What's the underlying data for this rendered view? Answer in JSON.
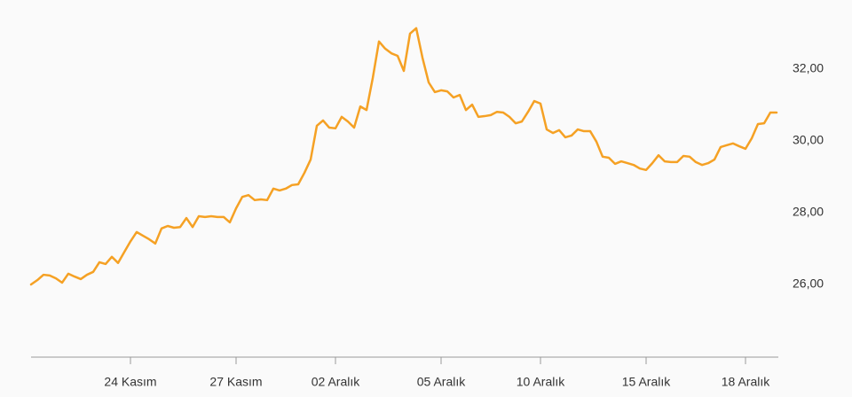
{
  "chart_data": {
    "type": "line",
    "categories": [
      null,
      null,
      null,
      null,
      null,
      null,
      null,
      null,
      null,
      null,
      null,
      null,
      null,
      null,
      null,
      null,
      "24 Kasım",
      null,
      null,
      null,
      null,
      null,
      null,
      null,
      null,
      null,
      null,
      null,
      null,
      null,
      null,
      null,
      null,
      "27 Kasım",
      null,
      null,
      null,
      null,
      null,
      null,
      null,
      null,
      null,
      null,
      null,
      null,
      null,
      null,
      null,
      "02 Aralık",
      null,
      null,
      null,
      null,
      null,
      null,
      null,
      null,
      null,
      null,
      null,
      null,
      null,
      null,
      null,
      null,
      "05 Aralık",
      null,
      null,
      null,
      null,
      null,
      null,
      null,
      null,
      null,
      null,
      null,
      null,
      null,
      null,
      null,
      "10 Aralık",
      null,
      null,
      null,
      null,
      null,
      null,
      null,
      null,
      null,
      null,
      null,
      null,
      null,
      null,
      null,
      null,
      "15 Aralık",
      null,
      null,
      null,
      null,
      null,
      null,
      null,
      null,
      null,
      null,
      null,
      null,
      null,
      null,
      null,
      "18 Aralık",
      null,
      null,
      null,
      null,
      null
    ],
    "values": [
      26.0,
      26.12,
      26.27,
      26.25,
      26.17,
      26.05,
      26.3,
      26.22,
      26.15,
      26.27,
      26.35,
      26.62,
      26.57,
      26.77,
      26.6,
      26.9,
      27.2,
      27.46,
      27.36,
      27.26,
      27.14,
      27.56,
      27.63,
      27.58,
      27.6,
      27.85,
      27.6,
      27.9,
      27.88,
      27.9,
      27.88,
      27.88,
      27.73,
      28.12,
      28.44,
      28.49,
      28.35,
      28.37,
      28.35,
      28.67,
      28.62,
      28.67,
      28.77,
      28.79,
      29.11,
      29.48,
      30.42,
      30.57,
      30.37,
      30.35,
      30.67,
      30.54,
      30.37,
      30.96,
      30.86,
      31.75,
      32.77,
      32.57,
      32.44,
      32.37,
      31.95,
      32.99,
      33.14,
      32.32,
      31.63,
      31.36,
      31.41,
      31.38,
      31.21,
      31.28,
      30.86,
      31.01,
      30.67,
      30.69,
      30.72,
      30.81,
      30.79,
      30.67,
      30.49,
      30.54,
      30.81,
      31.11,
      31.04,
      30.32,
      30.22,
      30.3,
      30.1,
      30.15,
      30.32,
      30.27,
      30.27,
      29.98,
      29.56,
      29.53,
      29.36,
      29.43,
      29.38,
      29.33,
      29.23,
      29.19,
      29.38,
      29.6,
      29.43,
      29.41,
      29.41,
      29.58,
      29.56,
      29.41,
      29.33,
      29.38,
      29.48,
      29.83,
      29.88,
      29.93,
      29.85,
      29.78,
      30.07,
      30.47,
      30.49,
      30.79,
      30.79
    ],
    "color": "#f5a124",
    "ylim": [
      24,
      34
    ],
    "yticks": [
      {
        "value": 26,
        "label": "26,00"
      },
      {
        "value": 28,
        "label": "28,00"
      },
      {
        "value": 30,
        "label": "30,00"
      },
      {
        "value": 32,
        "label": "32,00"
      }
    ],
    "grid": false
  }
}
